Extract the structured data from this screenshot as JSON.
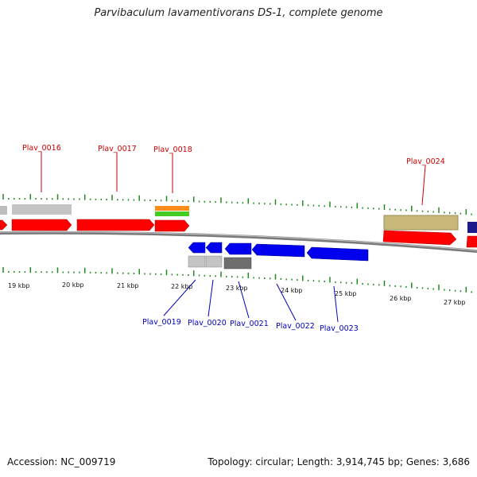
{
  "title": "Parvibaculum lavamentivorans DS-1, complete genome",
  "accession": "Accession: NC_009719",
  "summary": "Topology: circular; Length: 3,914,745 bp; Genes: 3,686",
  "colors": {
    "forward_gene": "#ff0000",
    "reverse_gene": "#0000ee",
    "top_label": "#cc0000",
    "bottom_label": "#0000bb",
    "tick": "#1f8a1f",
    "backbone": "#808080"
  },
  "kbp_labels": [
    "19 kbp",
    "20 kbp",
    "21 kbp",
    "22 kbp",
    "23 kbp",
    "24 kbp",
    "25 kbp",
    "26 kbp",
    "27 kbp"
  ],
  "top_gene_labels": [
    "Plav_0016",
    "Plav_0017",
    "Plav_0018",
    "Plav_0024"
  ],
  "bottom_gene_labels": [
    "Plav_0019",
    "Plav_0020",
    "Plav_0021",
    "Plav_0022",
    "Plav_0023"
  ]
}
